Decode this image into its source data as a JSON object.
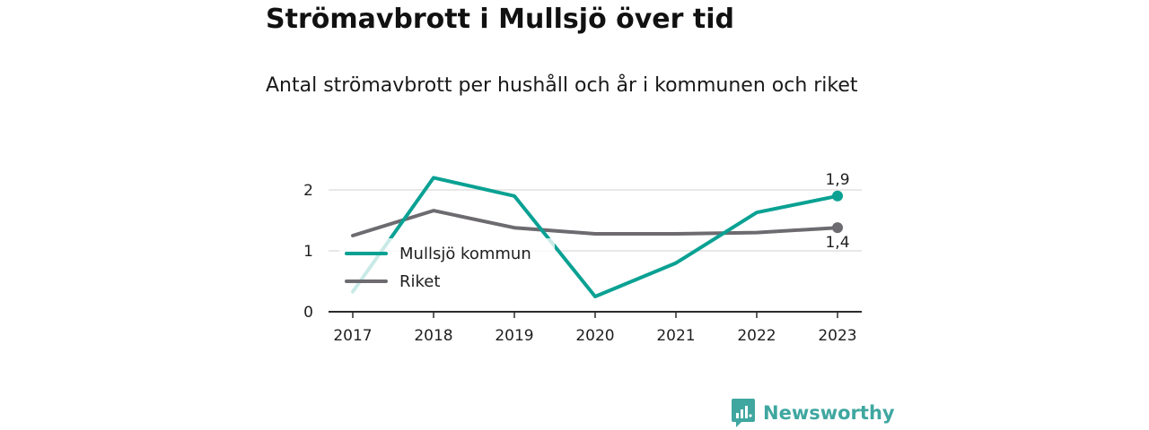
{
  "title": "Strömavbrott i Mullsjö över tid",
  "subtitle": "Antal strömavbrott per hushåll och år i kommunen och riket",
  "brand": {
    "name": "Newsworthy",
    "icon": "newsworthy-logo-icon",
    "color": "#3fa7a0"
  },
  "chart_data": {
    "type": "line",
    "title": "Strömavbrott i Mullsjö över tid",
    "subtitle": "Antal strömavbrott per hushåll och år i kommunen och riket",
    "xlabel": "",
    "ylabel": "",
    "x": [
      "2017",
      "2018",
      "2019",
      "2020",
      "2021",
      "2022",
      "2023"
    ],
    "ylim": [
      0,
      2.0
    ],
    "yticks": [
      "0",
      "1",
      "2"
    ],
    "grid": true,
    "legend_position": "left",
    "series": [
      {
        "name": "Mullsjö kommun",
        "color": "#0aa193",
        "values": [
          0.33,
          2.2,
          1.9,
          0.25,
          0.8,
          1.63,
          1.9
        ],
        "end_label": "1,9"
      },
      {
        "name": "Riket",
        "color": "#6d6b70",
        "values": [
          1.25,
          1.66,
          1.38,
          1.28,
          1.28,
          1.3,
          1.38
        ],
        "end_label": "1,4"
      }
    ]
  }
}
